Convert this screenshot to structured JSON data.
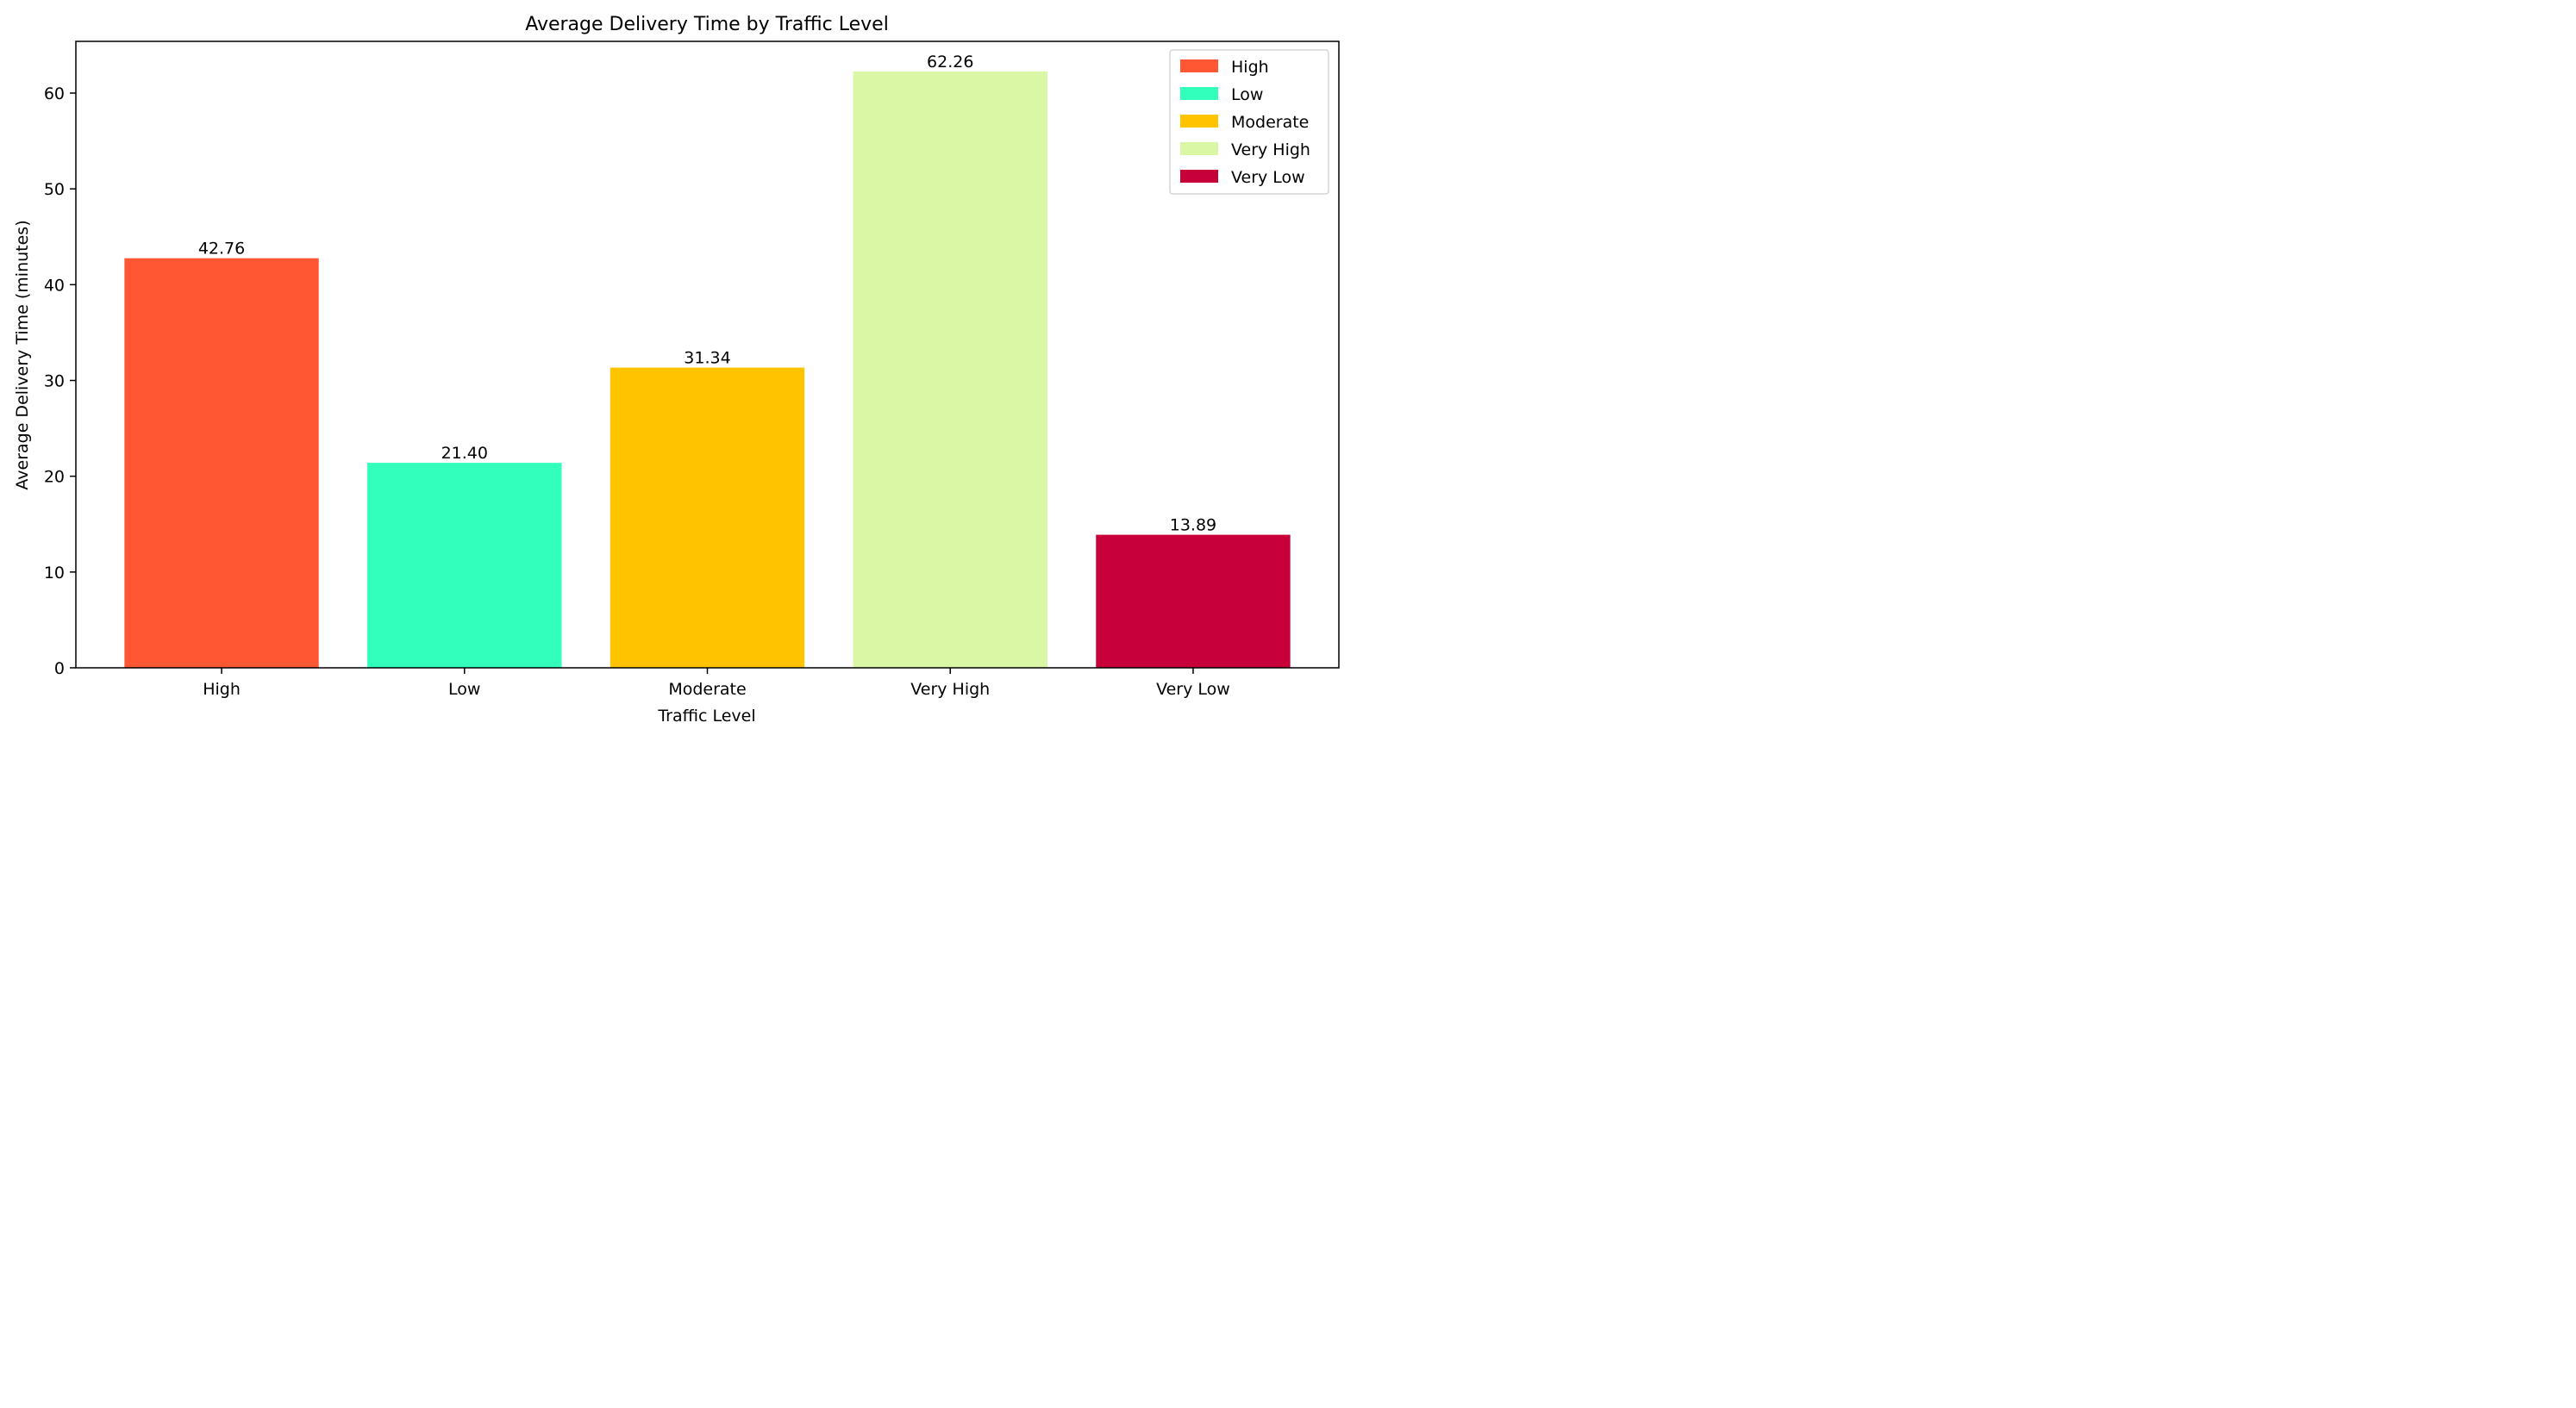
{
  "chart_data": {
    "type": "bar",
    "title": "Average Delivery Time by Traffic Level",
    "xlabel": "Traffic Level",
    "ylabel": "Average Delivery Time (minutes)",
    "categories": [
      "High",
      "Low",
      "Moderate",
      "Very High",
      "Very Low"
    ],
    "values": [
      42.76,
      21.4,
      31.34,
      62.26,
      13.89
    ],
    "value_labels": [
      "42.76",
      "21.40",
      "31.34",
      "62.26",
      "13.89"
    ],
    "colors": [
      "#ff5733",
      "#33ffbd",
      "#ffc300",
      "#daf7a6",
      "#c70039"
    ],
    "ylim": [
      0,
      65.4
    ],
    "yticks": [
      0,
      10,
      20,
      30,
      40,
      50,
      60
    ],
    "legend": {
      "placement": "top-right",
      "entries": [
        "High",
        "Low",
        "Moderate",
        "Very High",
        "Very Low"
      ]
    },
    "grid": false
  }
}
